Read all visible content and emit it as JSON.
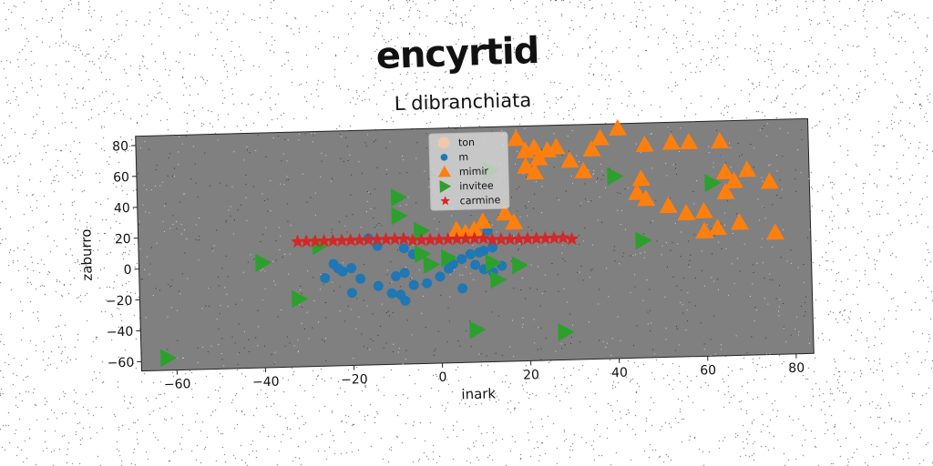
{
  "chart_data": {
    "type": "scatter",
    "title": "encyrtid",
    "subtitle": "L dibranchiata",
    "xlabel": "inark",
    "ylabel": "zaburro",
    "xlim": [
      -68,
      84
    ],
    "ylim": [
      -66,
      86
    ],
    "xticks": [
      -60,
      -40,
      -20,
      0,
      20,
      40,
      60,
      80
    ],
    "yticks": [
      -60,
      -40,
      -20,
      0,
      20,
      40,
      60,
      80
    ],
    "grid": false,
    "legend_position": "top-center",
    "background": "#808080",
    "series": [
      {
        "name": "ton",
        "marker": "circle-large",
        "color": "#f2c9a8",
        "points": []
      },
      {
        "name": "m",
        "marker": "circle",
        "color": "#1f77b4",
        "points": [
          [
            -24,
            0
          ],
          [
            -23,
            -3
          ],
          [
            -22,
            -5
          ],
          [
            -20,
            -3
          ],
          [
            -26,
            -9
          ],
          [
            -20,
            -19
          ],
          [
            -18,
            -10
          ],
          [
            -14,
            -15
          ],
          [
            -11,
            -20
          ],
          [
            -9,
            -21
          ],
          [
            -8,
            -25
          ],
          [
            -10,
            -9
          ],
          [
            -8,
            -7
          ],
          [
            -6,
            -15
          ],
          [
            -3,
            -14
          ],
          [
            0,
            -10
          ],
          [
            2,
            -5
          ],
          [
            3,
            -2
          ],
          [
            5,
            1
          ],
          [
            7,
            4
          ],
          [
            9,
            5
          ],
          [
            10,
            6
          ],
          [
            12,
            8
          ],
          [
            8,
            -3
          ],
          [
            10,
            -6
          ],
          [
            5,
            -18
          ],
          [
            -8,
            9
          ],
          [
            -6,
            5
          ],
          [
            -14,
            11
          ],
          [
            -16,
            16
          ],
          [
            12,
            -8
          ],
          [
            14,
            -4
          ],
          [
            11,
            19
          ]
        ]
      },
      {
        "name": "mimir",
        "marker": "triangle-up",
        "color": "#ff7f0e",
        "points": [
          [
            18,
            78
          ],
          [
            20,
            70
          ],
          [
            22,
            72
          ],
          [
            25,
            70
          ],
          [
            27,
            72
          ],
          [
            23,
            65
          ],
          [
            20,
            60
          ],
          [
            22,
            56
          ],
          [
            30,
            63
          ],
          [
            33,
            56
          ],
          [
            35,
            70
          ],
          [
            37,
            77
          ],
          [
            41,
            83
          ],
          [
            47,
            72
          ],
          [
            53,
            73
          ],
          [
            57,
            73
          ],
          [
            64,
            73
          ],
          [
            46,
            50
          ],
          [
            45,
            41
          ],
          [
            47,
            37
          ],
          [
            52,
            32
          ],
          [
            56,
            27
          ],
          [
            60,
            28
          ],
          [
            65,
            53
          ],
          [
            70,
            54
          ],
          [
            67,
            47
          ],
          [
            65,
            40
          ],
          [
            68,
            20
          ],
          [
            63,
            17
          ],
          [
            60,
            15
          ],
          [
            75,
            46
          ],
          [
            76,
            13
          ],
          [
            15,
            30
          ],
          [
            17,
            24
          ],
          [
            10,
            25
          ],
          [
            8,
            20
          ],
          [
            6,
            18
          ],
          [
            4,
            20
          ]
        ]
      },
      {
        "name": "invitee",
        "marker": "triangle-right",
        "color": "#2ca02c",
        "points": [
          [
            -62,
            -58
          ],
          [
            -40,
            2
          ],
          [
            -32,
            -22
          ],
          [
            -27,
            12
          ],
          [
            -9,
            42
          ],
          [
            -9,
            30
          ],
          [
            -4,
            20
          ],
          [
            -4,
            5
          ],
          [
            -2,
            -2
          ],
          [
            2,
            2
          ],
          [
            8,
            -45
          ],
          [
            12,
            -2
          ],
          [
            13,
            -13
          ],
          [
            18,
            -4
          ],
          [
            28,
            -48
          ],
          [
            40,
            52
          ],
          [
            46,
            10
          ],
          [
            62,
            46
          ],
          [
            12,
            58
          ]
        ]
      },
      {
        "name": "carmine",
        "marker": "star",
        "color": "#d62728",
        "points": [
          [
            -32,
            15
          ],
          [
            -30,
            15
          ],
          [
            -28,
            15
          ],
          [
            -26,
            15
          ],
          [
            -24,
            15
          ],
          [
            -22,
            15
          ],
          [
            -20,
            15
          ],
          [
            -18,
            15
          ],
          [
            -16,
            15
          ],
          [
            -14,
            15
          ],
          [
            -12,
            15
          ],
          [
            -10,
            15
          ],
          [
            -8,
            15
          ],
          [
            -6,
            14
          ],
          [
            -4,
            14
          ],
          [
            -2,
            14
          ],
          [
            0,
            14
          ],
          [
            2,
            14
          ],
          [
            4,
            14
          ],
          [
            6,
            14
          ],
          [
            8,
            14
          ],
          [
            10,
            14
          ],
          [
            12,
            13
          ],
          [
            14,
            13
          ],
          [
            16,
            13
          ],
          [
            18,
            13
          ],
          [
            20,
            13
          ],
          [
            22,
            13
          ],
          [
            24,
            13
          ],
          [
            26,
            13
          ],
          [
            28,
            13
          ],
          [
            30,
            12
          ]
        ]
      }
    ]
  }
}
